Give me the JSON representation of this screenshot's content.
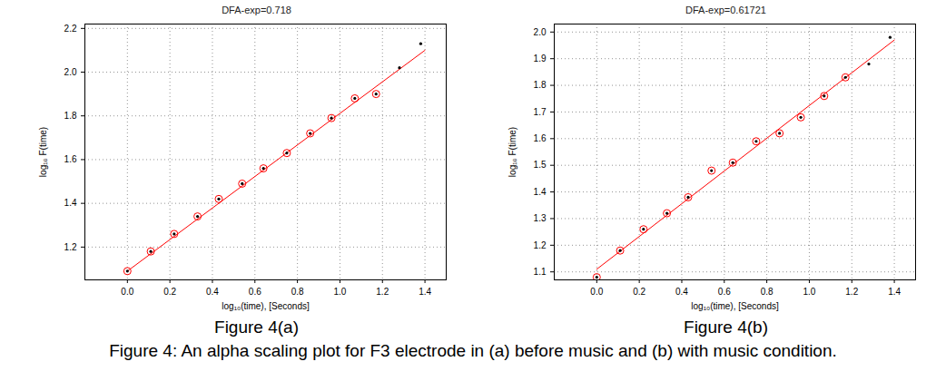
{
  "caption": "Figure 4: An alpha scaling plot for F3 electrode in (a) before music and (b) with music condition.",
  "chart_data": [
    {
      "type": "scatter",
      "title": "DFA-exp=0.718",
      "caption": "Figure 4(a)",
      "x_label": "log₁₀(time), [Seconds]",
      "y_label": "log₁₀ F(time)",
      "x": [
        0,
        0.11,
        0.22,
        0.33,
        0.43,
        0.54,
        0.64,
        0.75,
        0.86,
        0.96,
        1.07,
        1.17,
        1.28,
        1.38
      ],
      "series": [
        {
          "values": [
            1.09,
            1.18,
            1.26,
            1.34,
            1.42,
            1.49,
            1.56,
            1.63,
            1.72,
            1.79,
            1.88,
            1.9,
            2.02,
            2.13
          ],
          "color": "#000000",
          "marker": "dot"
        },
        {
          "values": [
            1.09,
            1.18,
            1.26,
            1.34,
            1.42,
            1.49,
            1.56,
            1.63,
            1.72,
            1.79,
            1.88,
            1.9,
            null,
            null
          ],
          "color": "#ff0000",
          "marker": "circle"
        }
      ],
      "fit_line": {
        "x": [
          0,
          1.4
        ],
        "y": [
          1.09,
          2.1
        ],
        "color": "#ff0000"
      },
      "xlim": [
        -0.2,
        1.5
      ],
      "xticks": [
        0,
        0.2,
        0.4,
        0.6,
        0.8,
        1,
        1.2,
        1.4
      ],
      "ylim": [
        1.05,
        2.22
      ],
      "yticks": [
        1.2,
        1.4,
        1.6,
        1.8,
        2,
        2.2
      ],
      "grid": true
    },
    {
      "type": "scatter",
      "title": "DFA-exp=0.61721",
      "caption": "Figure 4(b)",
      "x_label": "log₁₀(time), [Seconds]",
      "y_label": "log₁₀ F(time)",
      "x": [
        0,
        0.11,
        0.22,
        0.33,
        0.43,
        0.54,
        0.64,
        0.75,
        0.86,
        0.96,
        1.07,
        1.17,
        1.28,
        1.38
      ],
      "series": [
        {
          "values": [
            1.08,
            1.18,
            1.26,
            1.32,
            1.38,
            1.48,
            1.51,
            1.59,
            1.62,
            1.68,
            1.76,
            1.83,
            1.88,
            1.98
          ],
          "color": "#000000",
          "marker": "dot"
        },
        {
          "values": [
            1.08,
            1.18,
            1.26,
            1.32,
            1.38,
            1.48,
            1.51,
            1.59,
            1.62,
            1.68,
            1.76,
            1.83,
            null,
            null
          ],
          "color": "#ff0000",
          "marker": "circle"
        }
      ],
      "fit_line": {
        "x": [
          0,
          1.4
        ],
        "y": [
          1.11,
          1.97
        ],
        "color": "#ff0000"
      },
      "xlim": [
        -0.2,
        1.5
      ],
      "xticks": [
        0,
        0.2,
        0.4,
        0.6,
        0.8,
        1,
        1.2,
        1.4
      ],
      "ylim": [
        1.07,
        2.03
      ],
      "yticks": [
        1.1,
        1.2,
        1.3,
        1.4,
        1.5,
        1.6,
        1.7,
        1.8,
        1.9,
        2
      ],
      "grid": true
    }
  ]
}
